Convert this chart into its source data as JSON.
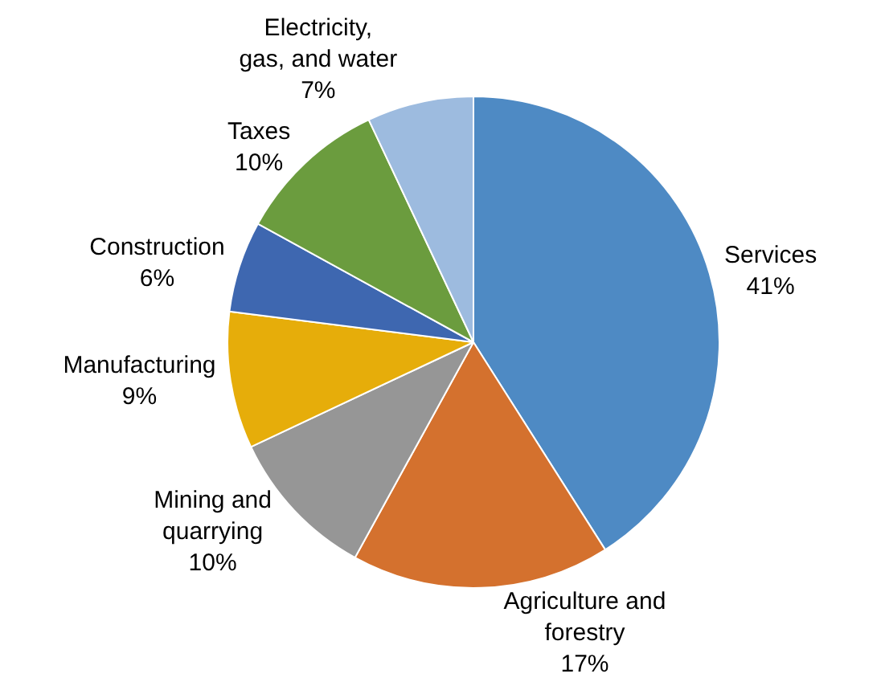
{
  "chart_data": {
    "type": "pie",
    "categories": [
      "Services",
      "Agriculture and forestry",
      "Mining and quarrying",
      "Manufacturing",
      "Construction",
      "Taxes",
      "Electricity, gas, and water"
    ],
    "values": [
      41,
      17,
      10,
      9,
      6,
      10,
      7
    ],
    "value_labels": [
      "41%",
      "17%",
      "10%",
      "9%",
      "6%",
      "10%",
      "7%"
    ],
    "colors": [
      "#4e8ac4",
      "#d4712e",
      "#969696",
      "#e6ad0a",
      "#3e67b0",
      "#6b9c3e",
      "#9dbbdf"
    ],
    "legend": false
  }
}
